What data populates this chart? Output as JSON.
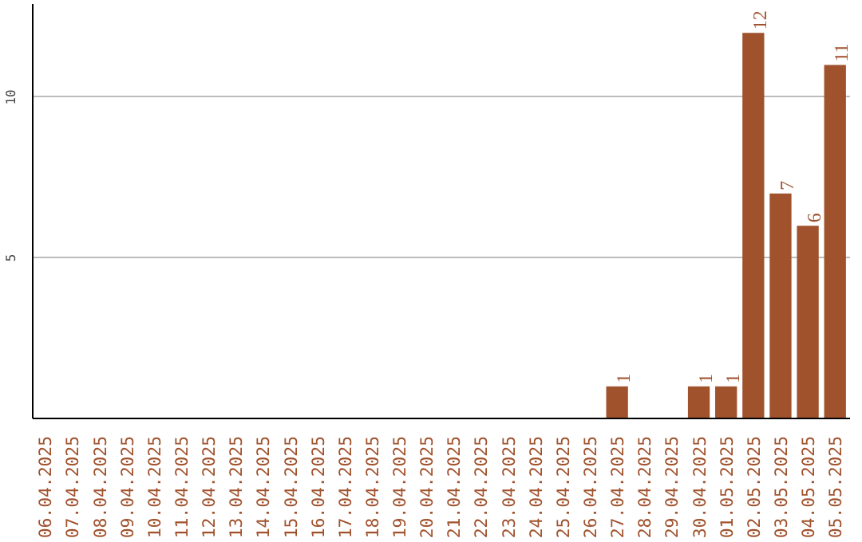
{
  "chart_data": {
    "type": "bar",
    "categories": [
      "06.04.2025",
      "07.04.2025",
      "08.04.2025",
      "09.04.2025",
      "10.04.2025",
      "11.04.2025",
      "12.04.2025",
      "13.04.2025",
      "14.04.2025",
      "15.04.2025",
      "16.04.2025",
      "17.04.2025",
      "18.04.2025",
      "19.04.2025",
      "20.04.2025",
      "21.04.2025",
      "22.04.2025",
      "23.04.2025",
      "24.04.2025",
      "25.04.2025",
      "26.04.2025",
      "27.04.2025",
      "28.04.2025",
      "29.04.2025",
      "30.04.2025",
      "01.05.2025",
      "02.05.2025",
      "03.05.2025",
      "04.05.2025",
      "05.05.2025"
    ],
    "values": [
      0,
      0,
      0,
      0,
      0,
      0,
      0,
      0,
      0,
      0,
      0,
      0,
      0,
      0,
      0,
      0,
      0,
      0,
      0,
      0,
      0,
      1,
      0,
      0,
      1,
      1,
      12,
      7,
      6,
      11
    ],
    "value_labels": [
      null,
      null,
      null,
      null,
      null,
      null,
      null,
      null,
      null,
      null,
      null,
      null,
      null,
      null,
      null,
      null,
      null,
      null,
      null,
      null,
      null,
      "1",
      null,
      null,
      "1",
      "1",
      "12",
      "7",
      "6",
      "11"
    ],
    "color": "#a0522d",
    "ylim": [
      0,
      12.9
    ],
    "yticks": [
      5,
      10
    ],
    "grid": "y"
  }
}
